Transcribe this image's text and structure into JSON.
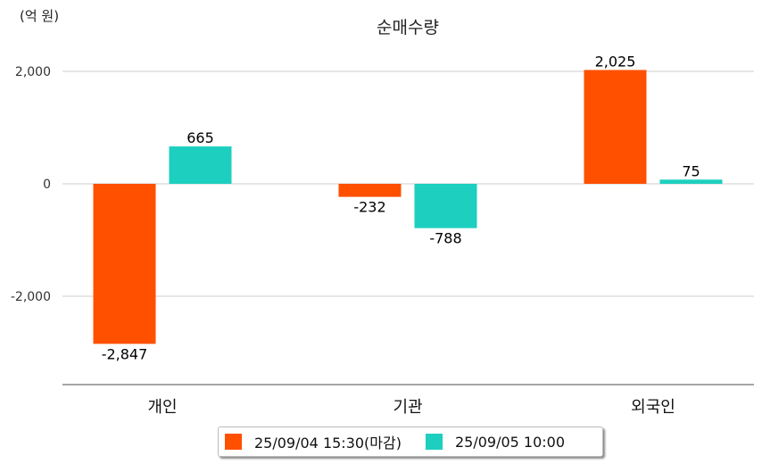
{
  "chart_data": {
    "type": "bar",
    "title": "순매수량",
    "unit_label": "(억 원)",
    "categories": [
      "개인",
      "기관",
      "외국인"
    ],
    "series": [
      {
        "name": "25/09/04 15:30(마감)",
        "color": "#FF5000",
        "values": [
          -2847,
          -232,
          2025
        ],
        "labels": [
          "-2,847",
          "-232",
          "2,025"
        ]
      },
      {
        "name": "25/09/05 10:00",
        "color": "#1DCFBF",
        "values": [
          665,
          -788,
          75
        ],
        "labels": [
          "665",
          "-788",
          "75"
        ]
      }
    ],
    "yticks": [
      2000,
      0,
      -2000
    ],
    "ytick_labels": [
      "2,000",
      "0",
      "-2,000"
    ],
    "ylim": [
      -3570,
      2600
    ],
    "grid": true,
    "legend": "bottom"
  }
}
